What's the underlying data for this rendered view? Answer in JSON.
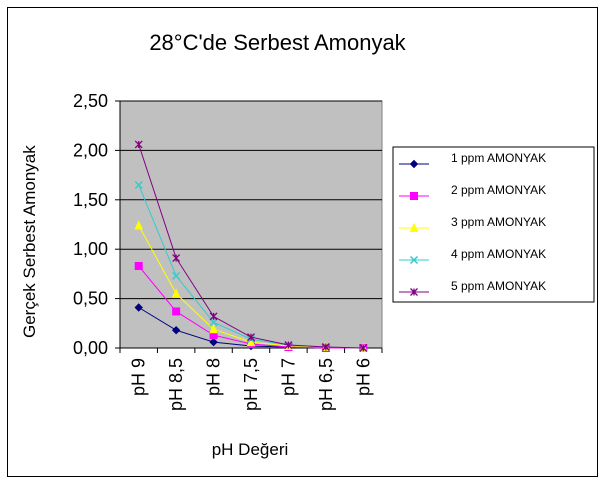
{
  "chart_data": {
    "type": "line",
    "title": "28°C'de Serbest Amonyak",
    "xlabel": "pH Değeri",
    "ylabel": "Gerçek Serbest Amonyak",
    "categories": [
      "pH 9",
      "pH 8,5",
      "pH 8",
      "pH 7,5",
      "pH 7",
      "pH 6,5",
      "pH 6"
    ],
    "yticks": [
      "0,00",
      "0,50",
      "1,00",
      "1,50",
      "2,00",
      "2,50"
    ],
    "ylim": [
      0,
      2.5
    ],
    "grid": true,
    "legend_position": "right",
    "series": [
      {
        "name": "1 ppm AMONYAK",
        "color": "#000080",
        "marker": "diamond",
        "values": [
          0.41,
          0.18,
          0.06,
          0.02,
          0.01,
          0.0,
          0.0
        ]
      },
      {
        "name": "2 ppm AMONYAK",
        "color": "#FF00FF",
        "marker": "square",
        "values": [
          0.83,
          0.37,
          0.13,
          0.04,
          0.01,
          0.0,
          0.0
        ]
      },
      {
        "name": "3 ppm AMONYAK",
        "color": "#FFFF00",
        "marker": "triangle",
        "values": [
          1.24,
          0.55,
          0.19,
          0.06,
          0.02,
          0.01,
          0.0
        ]
      },
      {
        "name": "4 ppm AMONYAK",
        "color": "#33CCCC",
        "marker": "x",
        "values": [
          1.65,
          0.73,
          0.26,
          0.09,
          0.03,
          0.01,
          0.0
        ]
      },
      {
        "name": "5 ppm AMONYAK",
        "color": "#800080",
        "marker": "star",
        "values": [
          2.06,
          0.91,
          0.32,
          0.11,
          0.03,
          0.01,
          0.0
        ]
      }
    ]
  }
}
